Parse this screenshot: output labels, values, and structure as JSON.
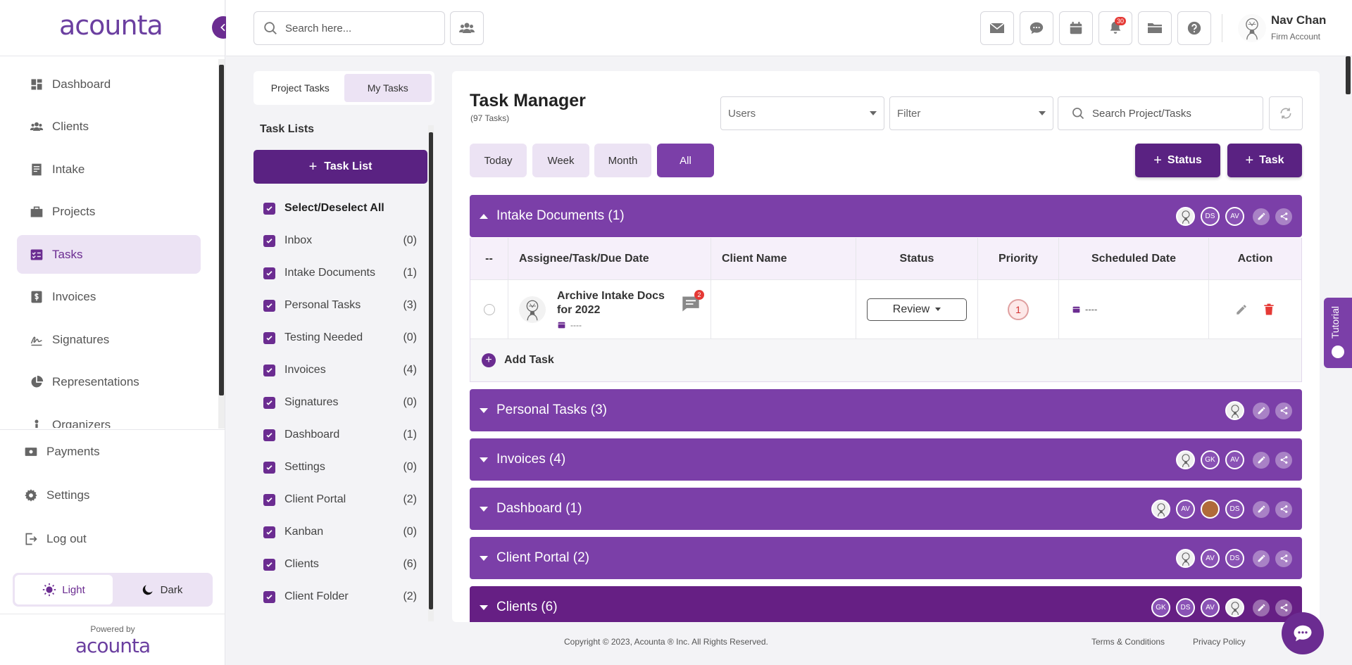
{
  "brand": {
    "logo_text": "acounta",
    "powered_by": "Powered by",
    "powered_logo": "acounta"
  },
  "sidebar": {
    "items": [
      {
        "label": "Dashboard",
        "icon": "dashboard-icon"
      },
      {
        "label": "Clients",
        "icon": "users-icon"
      },
      {
        "label": "Intake",
        "icon": "form-icon"
      },
      {
        "label": "Projects",
        "icon": "briefcase-icon"
      },
      {
        "label": "Tasks",
        "icon": "tasks-icon",
        "active": true
      },
      {
        "label": "Invoices",
        "icon": "dollar-icon"
      },
      {
        "label": "Signatures",
        "icon": "signature-icon"
      },
      {
        "label": "Representations",
        "icon": "pie-icon"
      },
      {
        "label": "Organizers",
        "icon": "person-icon"
      }
    ],
    "bottom": [
      {
        "label": "Payments",
        "icon": "money-icon"
      },
      {
        "label": "Settings",
        "icon": "gear-icon"
      },
      {
        "label": "Log out",
        "icon": "logout-icon"
      }
    ],
    "theme": {
      "light": "Light",
      "dark": "Dark"
    }
  },
  "header": {
    "search_placeholder": "Search here...",
    "notification_count": "30",
    "user": {
      "name": "Nav Chan",
      "role": "Firm Account"
    }
  },
  "task_panel": {
    "tabs": [
      {
        "label": "Project Tasks"
      },
      {
        "label": "My Tasks",
        "active": true
      }
    ],
    "title": "Task Lists",
    "add_label": "Task List",
    "select_all": "Select/Deselect All",
    "lists": [
      {
        "label": "Inbox",
        "count": "(0)"
      },
      {
        "label": "Intake Documents",
        "count": "(1)"
      },
      {
        "label": "Personal Tasks",
        "count": "(3)"
      },
      {
        "label": "Testing Needed",
        "count": "(0)"
      },
      {
        "label": "Invoices",
        "count": "(4)"
      },
      {
        "label": "Signatures",
        "count": "(0)"
      },
      {
        "label": "Dashboard",
        "count": "(1)"
      },
      {
        "label": "Settings",
        "count": "(0)"
      },
      {
        "label": "Client Portal",
        "count": "(2)"
      },
      {
        "label": "Kanban",
        "count": "(0)"
      },
      {
        "label": "Clients",
        "count": "(6)"
      },
      {
        "label": "Client Folder",
        "count": "(2)"
      }
    ]
  },
  "main": {
    "title": "Task Manager",
    "subtitle": "(97 Tasks)",
    "users_placeholder": "Users",
    "filter_placeholder": "Filter",
    "search_placeholder": "Search Project/Tasks",
    "ranges": [
      {
        "label": "Today"
      },
      {
        "label": "Week"
      },
      {
        "label": "Month"
      },
      {
        "label": "All",
        "active": true
      }
    ],
    "status_btn": "Status",
    "task_btn": "Task",
    "table": {
      "headers": [
        "--",
        "Assignee/Task/Due Date",
        "Client Name",
        "Status",
        "Priority",
        "Scheduled Date",
        "Action"
      ],
      "row": {
        "task": "Archive Intake Docs for 2022",
        "due": "----",
        "comments": "2",
        "client": "",
        "status": "Review",
        "priority": "1",
        "scheduled": "----"
      },
      "add_task": "Add Task"
    },
    "groups": [
      {
        "title": "Intake Documents (1)",
        "expanded": true,
        "avatars": [
          {
            "t": "",
            "kind": "img"
          },
          {
            "t": "DS"
          },
          {
            "t": "AV"
          }
        ]
      },
      {
        "title": "Personal Tasks (3)",
        "avatars": [
          {
            "t": "",
            "kind": "img"
          }
        ]
      },
      {
        "title": "Invoices (4)",
        "avatars": [
          {
            "t": "",
            "kind": "img"
          },
          {
            "t": "GK"
          },
          {
            "t": "AV"
          }
        ]
      },
      {
        "title": "Dashboard (1)",
        "avatars": [
          {
            "t": "",
            "kind": "img"
          },
          {
            "t": "AV"
          },
          {
            "t": "",
            "kind": "photo"
          },
          {
            "t": "DS"
          }
        ]
      },
      {
        "title": "Client Portal (2)",
        "avatars": [
          {
            "t": "",
            "kind": "img"
          },
          {
            "t": "AV"
          },
          {
            "t": "DS"
          }
        ]
      },
      {
        "title": "Clients (6)",
        "dark": true,
        "avatars": [
          {
            "t": "GK"
          },
          {
            "t": "DS"
          },
          {
            "t": "AV"
          },
          {
            "t": "",
            "kind": "img"
          }
        ]
      }
    ]
  },
  "tutorial": "Tutorial",
  "footer": {
    "copyright": "Copyright © 2023, Acounta ® Inc. All Rights Reserved.",
    "terms": "Terms & Conditions",
    "privacy": "Privacy Policy"
  },
  "colors": {
    "primary": "#6b2c91",
    "group": "#7b3fa8",
    "active_bg": "#ece3f4"
  }
}
